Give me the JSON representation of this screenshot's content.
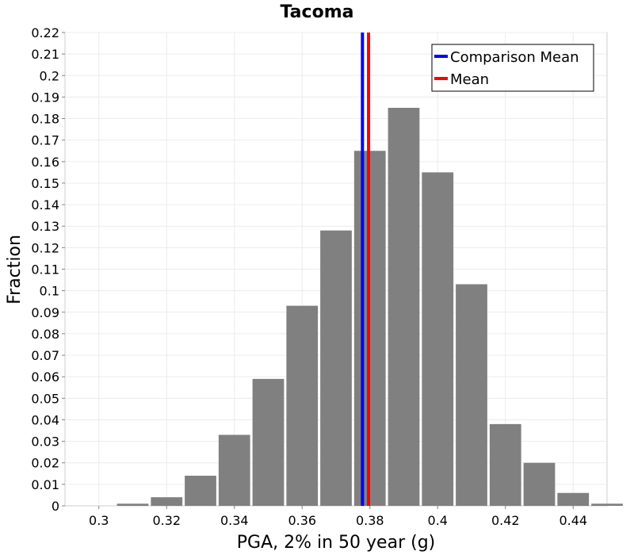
{
  "chart_data": {
    "type": "bar",
    "title": "Tacoma",
    "xlabel": "PGA, 2% in 50 year (g)",
    "ylabel": "Fraction",
    "xlim": [
      0.29,
      0.45
    ],
    "ylim": [
      0,
      0.22
    ],
    "bin_width": 0.01,
    "bins": [
      {
        "x": 0.3,
        "value": 0.0
      },
      {
        "x": 0.31,
        "value": 0.001
      },
      {
        "x": 0.32,
        "value": 0.004
      },
      {
        "x": 0.33,
        "value": 0.014
      },
      {
        "x": 0.34,
        "value": 0.033
      },
      {
        "x": 0.35,
        "value": 0.059
      },
      {
        "x": 0.36,
        "value": 0.093
      },
      {
        "x": 0.37,
        "value": 0.128
      },
      {
        "x": 0.38,
        "value": 0.165
      },
      {
        "x": 0.39,
        "value": 0.185
      },
      {
        "x": 0.4,
        "value": 0.155
      },
      {
        "x": 0.41,
        "value": 0.103
      },
      {
        "x": 0.42,
        "value": 0.038
      },
      {
        "x": 0.43,
        "value": 0.02
      },
      {
        "x": 0.44,
        "value": 0.006
      },
      {
        "x": 0.45,
        "value": 0.001
      }
    ],
    "x_ticks": [
      "0.3",
      "0.32",
      "0.34",
      "0.36",
      "0.38",
      "0.4",
      "0.42",
      "0.44"
    ],
    "x_tick_values": [
      0.3,
      0.32,
      0.34,
      0.36,
      0.38,
      0.4,
      0.42,
      0.44
    ],
    "y_ticks": [
      "0",
      "0.01",
      "0.02",
      "0.03",
      "0.04",
      "0.05",
      "0.06",
      "0.07",
      "0.08",
      "0.09",
      "0.1",
      "0.11",
      "0.12",
      "0.13",
      "0.14",
      "0.15",
      "0.16",
      "0.17",
      "0.18",
      "0.19",
      "0.2",
      "0.21",
      "0.22"
    ],
    "y_tick_values": [
      0,
      0.01,
      0.02,
      0.03,
      0.04,
      0.05,
      0.06,
      0.07,
      0.08,
      0.09,
      0.1,
      0.11,
      0.12,
      0.13,
      0.14,
      0.15,
      0.16,
      0.17,
      0.18,
      0.19,
      0.2,
      0.21,
      0.22
    ],
    "vlines": [
      {
        "name": "Comparison Mean",
        "x": 0.3778,
        "color": "#0000ff"
      },
      {
        "name": "Mean",
        "x": 0.3796,
        "color": "#ff0000"
      }
    ],
    "bar_color": "#808080",
    "grid": true,
    "legend_position": "top-right"
  }
}
